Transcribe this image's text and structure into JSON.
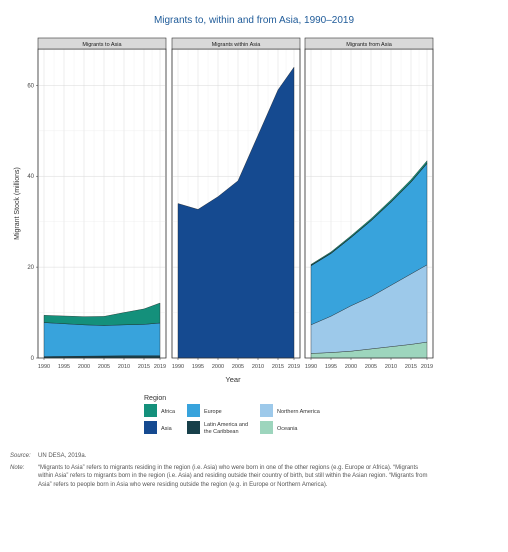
{
  "title": "Migrants to, within and from Asia, 1990–2019",
  "chart_data": {
    "type": "area",
    "ylabel": "Migrant Stock (millions)",
    "xlabel": "Year",
    "ylim": [
      0,
      68
    ],
    "yticks": [
      0,
      20,
      40,
      60
    ],
    "xticks": [
      "1990",
      "1995",
      "2000",
      "2005",
      "2010",
      "2015",
      "2019"
    ],
    "x": [
      1990,
      1995,
      2000,
      2005,
      2010,
      2015,
      2019
    ],
    "stacked": true,
    "grid": true,
    "legend_title": "Region",
    "legend_position": "bottom",
    "regions": [
      {
        "key": "africa",
        "name": "Africa",
        "color": "#14907b"
      },
      {
        "key": "asia",
        "name": "Asia",
        "color": "#154a90"
      },
      {
        "key": "europe",
        "name": "Europe",
        "color": "#38a3dc"
      },
      {
        "key": "lac",
        "name": "Latin America and the Caribbean",
        "color": "#17404a"
      },
      {
        "key": "northern_america",
        "name": "Northern America",
        "color": "#9dc9ea"
      },
      {
        "key": "oceania",
        "name": "Oceania",
        "color": "#9dd5bd"
      }
    ],
    "panels": [
      {
        "title": "Migrants to Asia",
        "series": [
          {
            "region": "lac",
            "values": [
              0.3,
              0.35,
              0.4,
              0.45,
              0.5,
              0.5,
              0.5
            ]
          },
          {
            "region": "europe",
            "values": [
              7.5,
              7.2,
              6.9,
              6.7,
              6.8,
              6.9,
              7.2
            ]
          },
          {
            "region": "africa",
            "values": [
              1.6,
              1.7,
              1.8,
              2.0,
              2.7,
              3.4,
              4.4
            ]
          }
        ]
      },
      {
        "title": "Migrants within Asia",
        "series": [
          {
            "region": "asia",
            "values": [
              34.0,
              32.7,
              35.5,
              39.0,
              49.0,
              59.0,
              64.0
            ]
          }
        ]
      },
      {
        "title": "Migrants from Asia",
        "series": [
          {
            "region": "oceania",
            "values": [
              1.0,
              1.2,
              1.5,
              2.0,
              2.5,
              3.0,
              3.5
            ]
          },
          {
            "region": "northern_america",
            "values": [
              6.3,
              8.0,
              10.0,
              11.5,
              13.5,
              15.5,
              17.0
            ]
          },
          {
            "region": "europe",
            "values": [
              13.0,
              13.8,
              15.0,
              16.7,
              18.3,
              20.2,
              22.3
            ]
          },
          {
            "region": "lac",
            "values": [
              0.1,
              0.1,
              0.1,
              0.1,
              0.1,
              0.1,
              0.1
            ]
          },
          {
            "region": "africa",
            "values": [
              0.2,
              0.25,
              0.3,
              0.35,
              0.4,
              0.45,
              0.5
            ]
          }
        ]
      }
    ]
  },
  "source": {
    "label": "Source:",
    "text": "UN DESA, 2019a."
  },
  "note": {
    "label": "Note:",
    "text": "“Migrants to Asia” refers to migrants residing in the region (i.e. Asia) who were born in one of the other regions (e.g. Europe or Africa). “Migrants within Asia” refers to migrants born in the region (i.e. Asia) and residing outside their country of birth, but still within the Asian region. “Migrants from Asia” refers to people born in Asia who were residing outside the region (e.g. in Europe or Northern America)."
  }
}
